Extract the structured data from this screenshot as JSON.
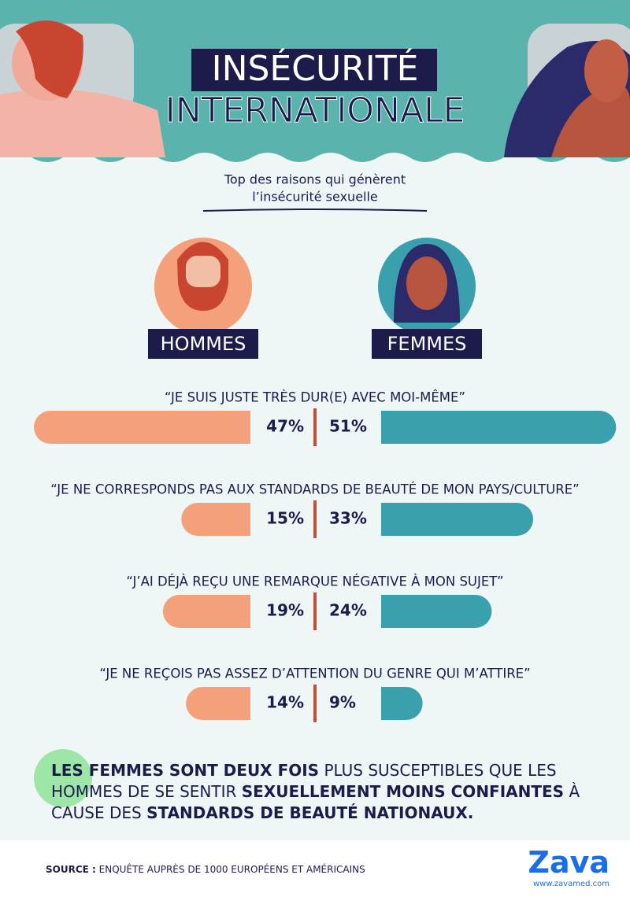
{
  "header": {
    "title": [
      "INSÉCURITÉ",
      "INTERNATIONALE"
    ]
  },
  "chart_data": {
    "type": "butterfly",
    "subtitle": [
      "Top des raisons qui génèrent",
      "l’insécurité sexuelle"
    ],
    "categories": [
      "“JE SUIS JUSTE TRÈS DUR(E) AVEC MOI-MÊME”",
      "“JE NE CORRESPONDS PAS AUX STANDARDS DE BEAUTÉ DE MON PAYS/CULTURE”",
      "“J’AI DÉJÀ REÇU UNE REMARQUE NÉGATIVE À MON SUJET”",
      "“JE NE REÇOIS PAS ASSEZ D’ATTENTION DU GENRE QUI M’ATTIRE”"
    ],
    "series": [
      {
        "name": "HOMMES",
        "color": "#f4a07a",
        "values": [
          47,
          15,
          19,
          14
        ],
        "value_labels": [
          "47%",
          "15%",
          "19%",
          "14%"
        ]
      },
      {
        "name": "FEMMES",
        "color": "#3aa0ad",
        "values": [
          51,
          33,
          24,
          9
        ],
        "value_labels": [
          "51%",
          "33%",
          "24%",
          "9%"
        ]
      }
    ]
  },
  "note": {
    "segments": [
      {
        "text": "LES FEMMES SONT DEUX FOIS",
        "bold": true
      },
      {
        "text": "PLUS SUSCEPTIBLES QUE LES HOMMES DE SE SENTIR",
        "bold": false
      },
      {
        "text": "SEXUELLEMENT MOINS CONFIANTES",
        "bold": true
      },
      {
        "text": "À CAUSE DES",
        "bold": false
      },
      {
        "text": "STANDARDS DE BEAUTÉ NATIONAUX.",
        "bold": true
      }
    ]
  },
  "footer": {
    "source_label": "SOURCE :",
    "source": "ENQUÊTE AUPRÈS DE 1000 EUROPÉENS ET AMÉRICAINS",
    "logo": "Zava",
    "url": "www.zavamed.com"
  }
}
